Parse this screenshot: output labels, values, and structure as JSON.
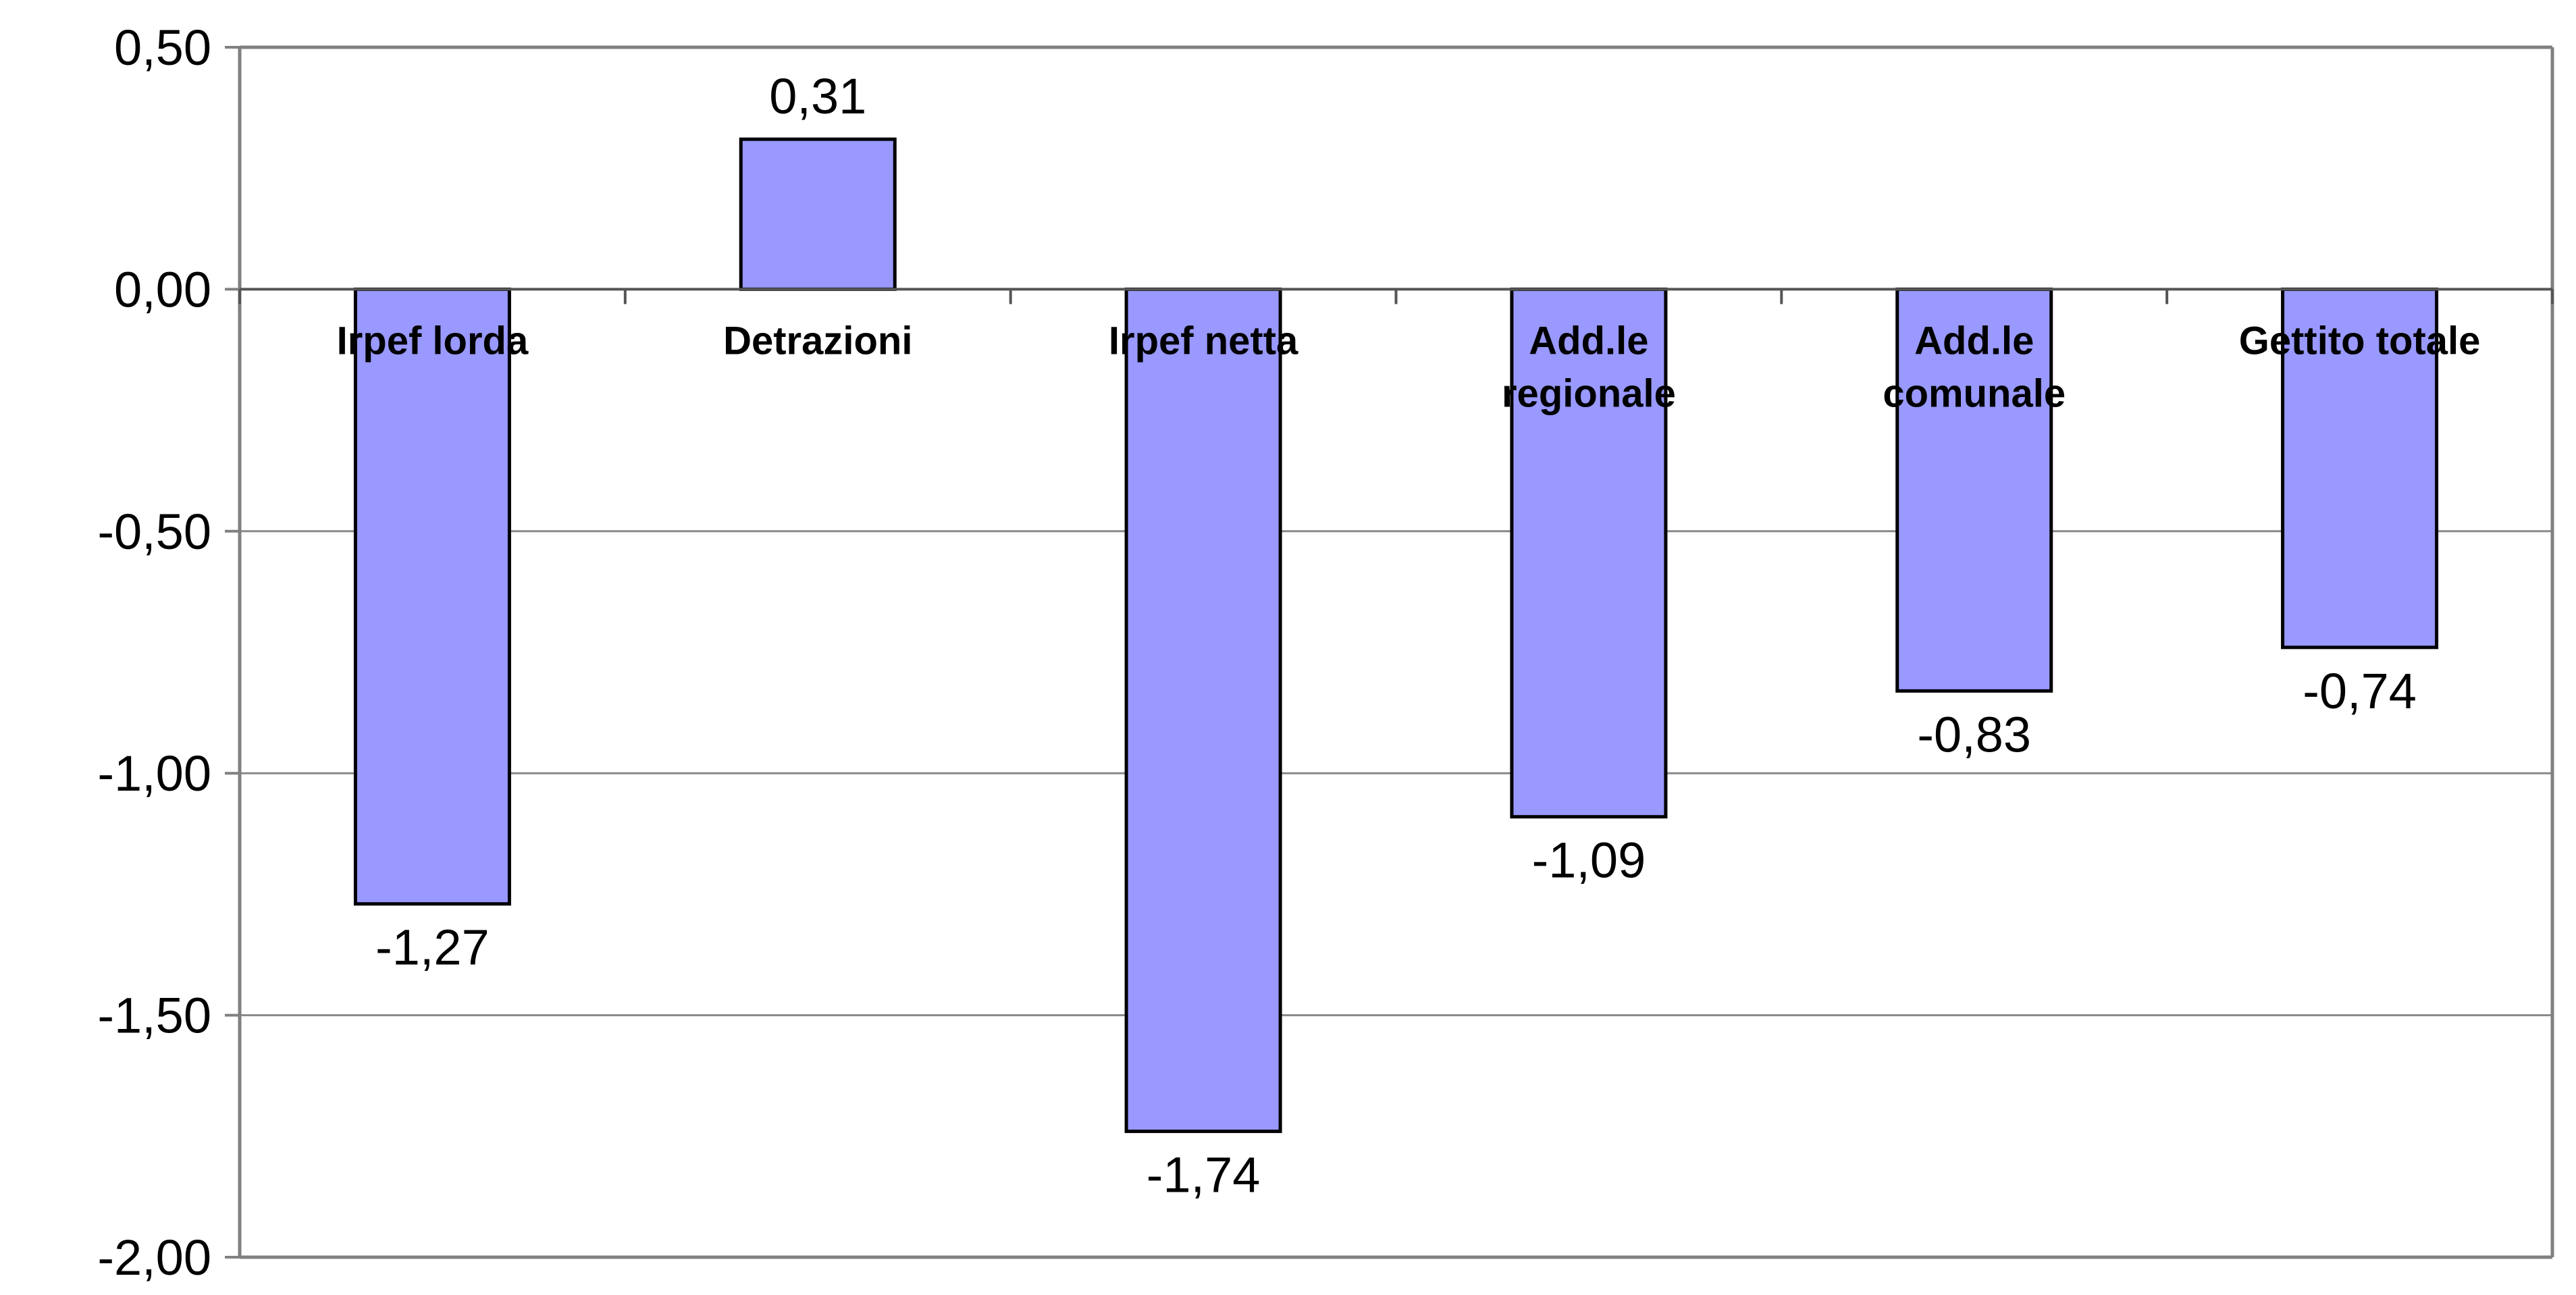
{
  "chart_data": {
    "type": "bar",
    "categories": [
      "Irpef lorda",
      "Detrazioni",
      "Irpef netta",
      "Add.le regionale",
      "Add.le comunale",
      "Gettito totale"
    ],
    "category_label_lines": [
      [
        "Irpef lorda"
      ],
      [
        "Detrazioni"
      ],
      [
        "Irpef netta"
      ],
      [
        "Add.le",
        "regionale"
      ],
      [
        "Add.le",
        "comunale"
      ],
      [
        "Gettito totale"
      ]
    ],
    "values": [
      -1.27,
      0.31,
      -1.74,
      -1.09,
      -0.83,
      -0.74
    ],
    "data_labels": [
      "-1,27",
      "0,31",
      "-1,74",
      "-1,09",
      "-0,83",
      "-0,74"
    ],
    "ylim": [
      -2.0,
      0.5
    ],
    "yticks": [
      0.5,
      0.0,
      -0.5,
      -1.0,
      -1.5,
      -2.0
    ],
    "ytick_labels": [
      "0,50",
      "0,00",
      "-0,50",
      "-1,00",
      "-1,50",
      "-2,00"
    ],
    "title": "",
    "xlabel": "",
    "ylabel": "",
    "grid": true,
    "legend": "none",
    "bar_color": "#9999ff",
    "bar_stroke": "#000000",
    "gridline_color": "#888888",
    "axis_color": "#808080"
  }
}
